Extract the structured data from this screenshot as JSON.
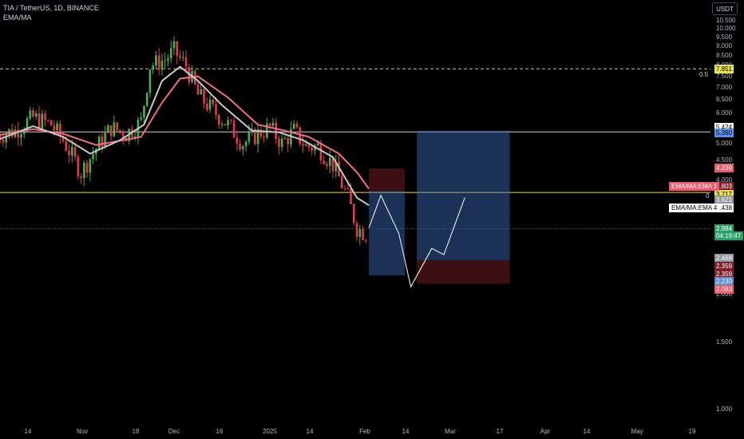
{
  "header": {
    "symbol_line": "TIA / TetherUS, 1D, BINANCE",
    "indicator": "EMA/MA"
  },
  "currency_button": "USDT",
  "chart_data": {
    "type": "candlestick",
    "symbol": "TIA / TetherUS",
    "interval": "1D",
    "exchange": "BINANCE",
    "y_scale": "log",
    "ylim": [
      0.95,
      10.8
    ],
    "y_ticks": [
      "10.500",
      "10.000",
      "9.500",
      "9.000",
      "8.500",
      "8.000",
      "7.500",
      "7.000",
      "6.500",
      "6.000",
      "5.500",
      "5.000",
      "4.500",
      "4.000",
      "3.500",
      "3.000",
      "2.500",
      "2.000",
      "1.500",
      "1.000"
    ],
    "x_ticks": [
      "14",
      "Nov",
      "18",
      "Dec",
      "16",
      "2025",
      "14",
      "Feb",
      "14",
      "Mar",
      "17",
      "Apr",
      "14",
      "May",
      "19"
    ],
    "close_path": [
      [
        "2024-10-08",
        5.25
      ],
      [
        "2024-10-14",
        5.4
      ],
      [
        "2024-10-20",
        5.85
      ],
      [
        "2024-10-26",
        5.6
      ],
      [
        "2024-10-30",
        5.1
      ],
      [
        "2024-11-05",
        4.2
      ],
      [
        "2024-11-10",
        4.85
      ],
      [
        "2024-11-15",
        5.5
      ],
      [
        "2024-11-20",
        5.3
      ],
      [
        "2024-11-25",
        5.7
      ],
      [
        "2024-11-28",
        8.0
      ],
      [
        "2024-12-03",
        8.3
      ],
      [
        "2024-12-06",
        8.75
      ],
      [
        "2024-12-10",
        8.0
      ],
      [
        "2024-12-14",
        6.7
      ],
      [
        "2024-12-19",
        6.1
      ],
      [
        "2024-12-24",
        5.6
      ],
      [
        "2024-12-29",
        5.0
      ],
      [
        "2025-01-03",
        5.3
      ],
      [
        "2025-01-07",
        5.5
      ],
      [
        "2025-01-11",
        5.0
      ],
      [
        "2025-01-15",
        5.4
      ],
      [
        "2025-01-19",
        4.9
      ],
      [
        "2025-01-23",
        4.9
      ],
      [
        "2025-01-28",
        4.4
      ],
      [
        "2025-02-02",
        3.6
      ],
      [
        "2025-02-05",
        3.0
      ],
      [
        "2025-02-08",
        2.9
      ]
    ],
    "ema_fast": [
      [
        "2024-10-08",
        5.1
      ],
      [
        "2024-10-20",
        5.55
      ],
      [
        "2024-10-30",
        5.2
      ],
      [
        "2024-11-08",
        4.7
      ],
      [
        "2024-11-18",
        5.1
      ],
      [
        "2024-11-26",
        5.6
      ],
      [
        "2024-12-02",
        7.3
      ],
      [
        "2024-12-08",
        7.95
      ],
      [
        "2024-12-14",
        7.3
      ],
      [
        "2024-12-22",
        6.3
      ],
      [
        "2025-01-01",
        5.4
      ],
      [
        "2025-01-10",
        5.35
      ],
      [
        "2025-01-18",
        5.1
      ],
      [
        "2025-01-28",
        4.6
      ],
      [
        "2025-02-05",
        3.6
      ],
      [
        "2025-02-09",
        3.44
      ]
    ],
    "ema_slow": [
      [
        "2024-10-08",
        5.25
      ],
      [
        "2024-10-20",
        5.45
      ],
      [
        "2024-10-30",
        5.3
      ],
      [
        "2024-11-10",
        4.95
      ],
      [
        "2024-11-25",
        5.2
      ],
      [
        "2024-12-02",
        6.4
      ],
      [
        "2024-12-08",
        7.4
      ],
      [
        "2024-12-14",
        7.5
      ],
      [
        "2024-12-24",
        6.6
      ],
      [
        "2025-01-03",
        5.6
      ],
      [
        "2025-01-12",
        5.4
      ],
      [
        "2025-01-20",
        5.2
      ],
      [
        "2025-01-30",
        4.7
      ],
      [
        "2025-02-05",
        4.2
      ],
      [
        "2025-02-09",
        3.8
      ]
    ],
    "projection_path": [
      [
        "2025-02-09",
        3.0
      ],
      [
        "2025-02-13",
        3.65
      ],
      [
        "2025-02-19",
        2.9
      ],
      [
        "2025-02-23",
        2.1
      ],
      [
        "2025-03-02",
        2.65
      ],
      [
        "2025-03-06",
        2.55
      ],
      [
        "2025-03-13",
        3.6
      ]
    ],
    "horizontal_lines": [
      {
        "price": 7.851,
        "label": "0.5",
        "color": "#d4c64a",
        "style": "dashed"
      },
      {
        "price": 5.36,
        "color": "#d1d4dc",
        "style": "solid"
      },
      {
        "price": 3.717,
        "color": "#e8e24d",
        "style": "solid"
      },
      {
        "price": 2.984,
        "color": "#5f636b",
        "style": "dotted"
      }
    ],
    "positions": [
      {
        "type": "short",
        "from": "2025-02-09",
        "to": "2025-02-21",
        "entry": 3.75,
        "stop": 4.3,
        "target": 2.25
      },
      {
        "type": "long",
        "from": "2025-02-25",
        "to": "2025-03-28",
        "entry": 2.47,
        "stop": 2.14,
        "target": 5.4
      }
    ],
    "price_labels": [
      {
        "value": "7.851",
        "bg": "#e8e24d",
        "fg": "#000000",
        "price": 7.851
      },
      {
        "value": "5.424",
        "bg": "#ffffff",
        "fg": "#000000",
        "price": 5.5
      },
      {
        "value": "5.360",
        "bg": "#5b8ee6",
        "fg": "#000000",
        "price": 5.33
      },
      {
        "value": "4.239",
        "bg": "#f05a6a",
        "fg": "#ffffff",
        "price": 4.3
      },
      {
        "value": "3.803",
        "bg": "#7f1f2a",
        "fg": "#ffffff",
        "price": 3.86
      },
      {
        "value": "3.717",
        "bg": "#e8e24d",
        "fg": "#000000",
        "price": 3.68
      },
      {
        "value": "3.621",
        "bg": "#9598a1",
        "fg": "#ffffff",
        "price": 3.56
      },
      {
        "value": "3.438",
        "bg": "#ffffff",
        "fg": "#000000",
        "price": 3.38
      },
      {
        "value": "2.984",
        "bg": "#26a269",
        "fg": "#ffffff",
        "price": 2.99
      },
      {
        "value": "04:19:47",
        "bg": "#26a269",
        "fg": "#ffffff",
        "price": 2.86
      },
      {
        "value": "2.468",
        "bg": "#9598a1",
        "fg": "#ffffff",
        "price": 2.5
      },
      {
        "value": "2.359",
        "bg": "#7f1f2a",
        "fg": "#ffffff",
        "price": 2.38
      },
      {
        "value": "2.359",
        "bg": "#7f1f2a",
        "fg": "#ffffff",
        "price": 2.27
      },
      {
        "value": "2.230",
        "bg": "#5b8ee6",
        "fg": "#ffffff",
        "price": 2.17
      },
      {
        "value": "2.083",
        "bg": "#f05a6a",
        "fg": "#ffffff",
        "price": 2.07
      }
    ],
    "indicator_tags": [
      {
        "text": "EMA/MA:EMA 1",
        "bg": "#f05a6a",
        "fg": "#ffffff",
        "price": 3.86
      },
      {
        "text": "EMA/MA:EMA 4",
        "bg": "#ffffff",
        "fg": "#000000",
        "price": 3.38
      }
    ],
    "fib_zero_label": "0",
    "colors": {
      "up": "#4caf50",
      "down": "#e53950",
      "ema_fast": "#c8c8c8",
      "ema_slow": "#f07080"
    }
  }
}
